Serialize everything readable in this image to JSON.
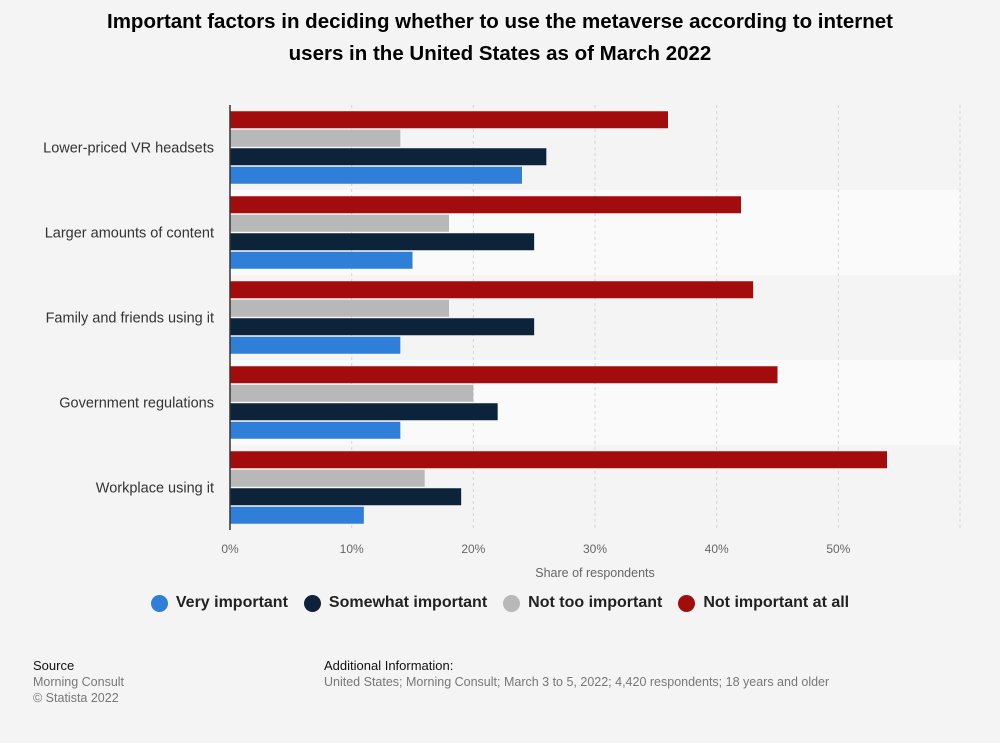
{
  "chart_data": {
    "type": "bar",
    "orientation": "horizontal",
    "title": "Important factors in deciding whether to use the metaverse according to internet users in the United States as of March 2022",
    "title_lines": [
      "Important factors in deciding whether to use the metaverse according to internet",
      "users in the United States as of March 2022"
    ],
    "categories": [
      "Lower-priced VR headsets",
      "Larger amounts of content",
      "Family and friends using it",
      "Government regulations",
      "Workplace using it"
    ],
    "series": [
      {
        "name": "Very important",
        "color": "#2f7ed8",
        "values": [
          24,
          15,
          14,
          14,
          11
        ]
      },
      {
        "name": "Somewhat important",
        "color": "#0d233a",
        "values": [
          26,
          25,
          25,
          22,
          19
        ]
      },
      {
        "name": "Not too important",
        "color": "#b8b8b8",
        "values": [
          14,
          18,
          18,
          20,
          16
        ]
      },
      {
        "name": "Not important at all",
        "color": "#a30c0c",
        "values": [
          36,
          42,
          43,
          45,
          54
        ]
      }
    ],
    "xlabel": "Share of respondents",
    "ylabel": "",
    "xlim": [
      0,
      60
    ],
    "xticks": [
      0,
      10,
      20,
      30,
      40,
      50
    ],
    "xtick_labels": [
      "0%",
      "10%",
      "20%",
      "30%",
      "40%",
      "50%"
    ],
    "grid": true,
    "legend_placement": "bottom"
  },
  "footer": {
    "source_heading": "Source",
    "source_lines": [
      "Morning Consult",
      "© Statista 2022"
    ],
    "additional_heading": "Additional Information:",
    "additional_text": "United States; Morning Consult; March 3 to 5, 2022; 4,420 respondents; 18 years and older"
  }
}
